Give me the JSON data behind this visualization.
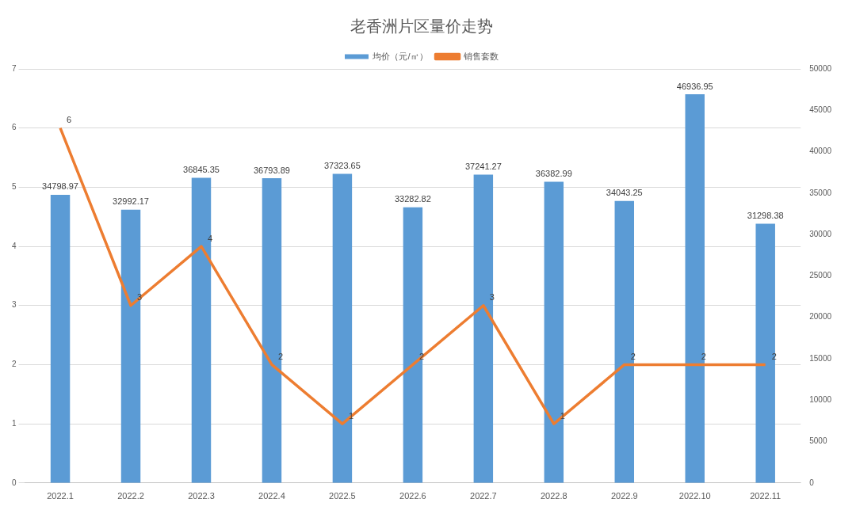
{
  "chart_data": {
    "type": "bar",
    "title": "老香洲片区量价走势",
    "categories": [
      "2022.1",
      "2022.2",
      "2022.3",
      "2022.4",
      "2022.5",
      "2022.6",
      "2022.7",
      "2022.8",
      "2022.9",
      "2022.10",
      "2022.11"
    ],
    "series": [
      {
        "name": "均价（元/㎡）",
        "axis": "y2",
        "color": "#5b9bd5",
        "values": [
          34798.97,
          32992.17,
          36845.35,
          36793.89,
          37323.65,
          33282.82,
          37241.27,
          36382.99,
          34043.25,
          46936.95,
          31298.38
        ]
      },
      {
        "name": "销售套数",
        "type": "line",
        "axis": "y",
        "color": "#ed7d31",
        "values": [
          6,
          3,
          4,
          2,
          1,
          2,
          3,
          1,
          2,
          2,
          2
        ]
      }
    ],
    "ylim": [
      0,
      7
    ],
    "yticks": [
      0,
      1,
      2,
      3,
      4,
      5,
      6,
      7
    ],
    "y2lim": [
      0,
      50000
    ],
    "y2ticks": [
      0,
      5000,
      10000,
      15000,
      20000,
      25000,
      30000,
      35000,
      40000,
      45000,
      50000
    ],
    "grid": "y",
    "legend": "top",
    "marker": "none",
    "line_style": "solid",
    "data_labels": true
  }
}
